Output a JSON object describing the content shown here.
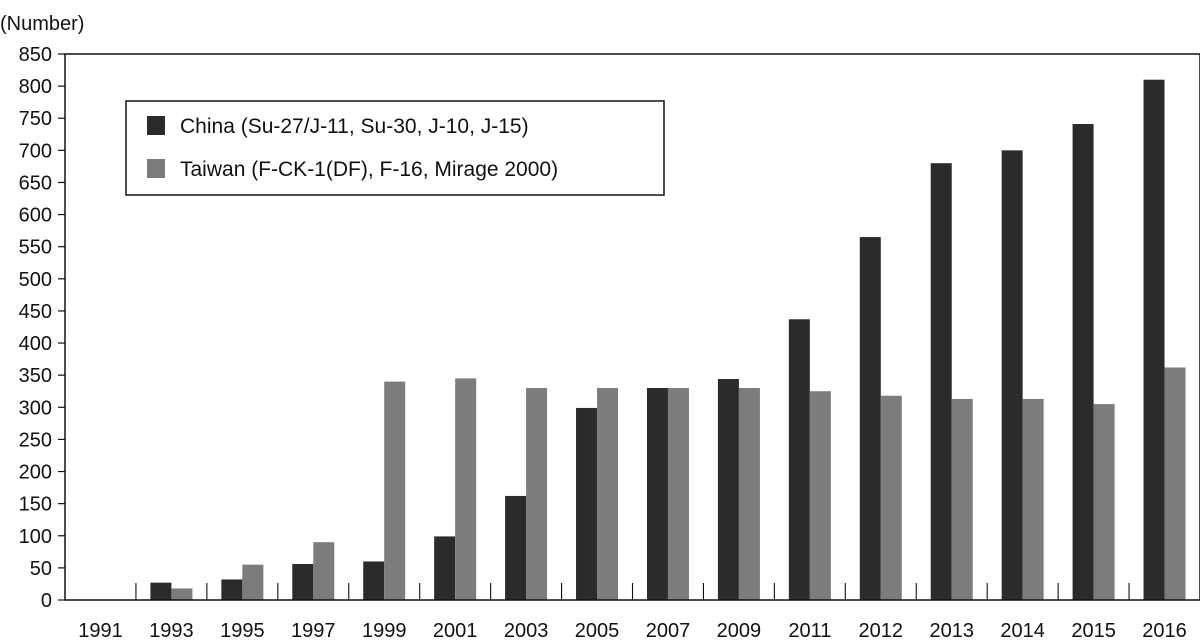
{
  "chart_data": {
    "type": "bar",
    "ylabel": "(Number)",
    "categories": [
      "1991",
      "1993",
      "1995",
      "1997",
      "1999",
      "2001",
      "2003",
      "2005",
      "2007",
      "2009",
      "2011",
      "2012",
      "2013",
      "2014",
      "2015",
      "2016"
    ],
    "series": [
      {
        "name": "China (Su-27/J-11, Su-30, J-10, J-15)",
        "color": "#2b2b2b",
        "values": [
          0,
          27,
          32,
          56,
          60,
          99,
          162,
          299,
          330,
          344,
          437,
          565,
          680,
          700,
          741,
          810
        ]
      },
      {
        "name": "Taiwan (F-CK-1(DF), F-16, Mirage 2000)",
        "color": "#7c7c7c",
        "values": [
          0,
          18,
          55,
          90,
          340,
          345,
          330,
          330,
          330,
          330,
          325,
          318,
          313,
          313,
          305,
          362
        ]
      }
    ],
    "ylim": [
      0,
      850
    ],
    "yticks": [
      0,
      50,
      100,
      150,
      200,
      250,
      300,
      350,
      400,
      450,
      500,
      550,
      600,
      650,
      700,
      750,
      800,
      850
    ],
    "grid": false,
    "legend_position": "top-left"
  }
}
